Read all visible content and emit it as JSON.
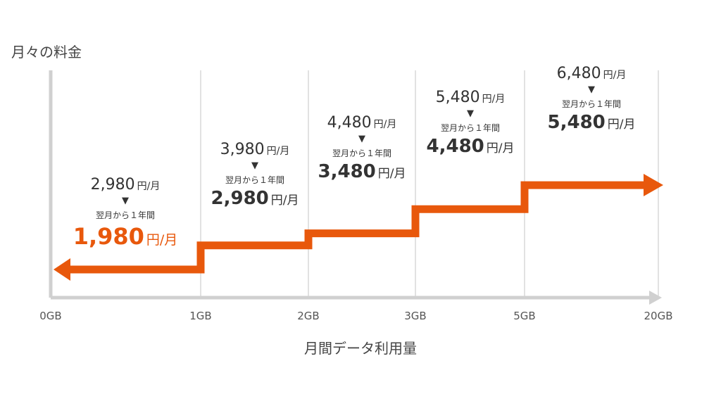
{
  "chart_data": {
    "type": "line",
    "title": "",
    "ylabel": "月々の料金",
    "xlabel": "月間データ利用量",
    "x_ticks": [
      "0GB",
      "1GB",
      "2GB",
      "3GB",
      "5GB",
      "20GB"
    ],
    "series": [
      {
        "values": [
          1980,
          2980,
          3480,
          4480,
          5480
        ],
        "x_ranges": [
          [
            "0GB",
            "1GB"
          ],
          [
            "1GB",
            "2GB"
          ],
          [
            "2GB",
            "3GB"
          ],
          [
            "3GB",
            "5GB"
          ],
          [
            "5GB",
            "20GB"
          ]
        ]
      }
    ],
    "tiers": [
      {
        "regular": "2,980",
        "discount_note": "翌月から１年間",
        "discounted": "1,980",
        "unit": "円/月"
      },
      {
        "regular": "3,980",
        "discount_note": "翌月から１年間",
        "discounted": "2,980",
        "unit": "円/月"
      },
      {
        "regular": "4,480",
        "discount_note": "翌月から１年間",
        "discounted": "3,480",
        "unit": "円/月"
      },
      {
        "regular": "5,480",
        "discount_note": "翌月から１年間",
        "discounted": "4,480",
        "unit": "円/月"
      },
      {
        "regular": "6,480",
        "discount_note": "翌月から１年間",
        "discounted": "5,480",
        "unit": "円/月"
      }
    ],
    "arrow_glyph": "▼",
    "colors": {
      "step_line": "#e8580c",
      "highlight_text": "#e8580c",
      "axis": "#d0d0d0",
      "grid": "#d8d8d8"
    },
    "grid": true
  }
}
